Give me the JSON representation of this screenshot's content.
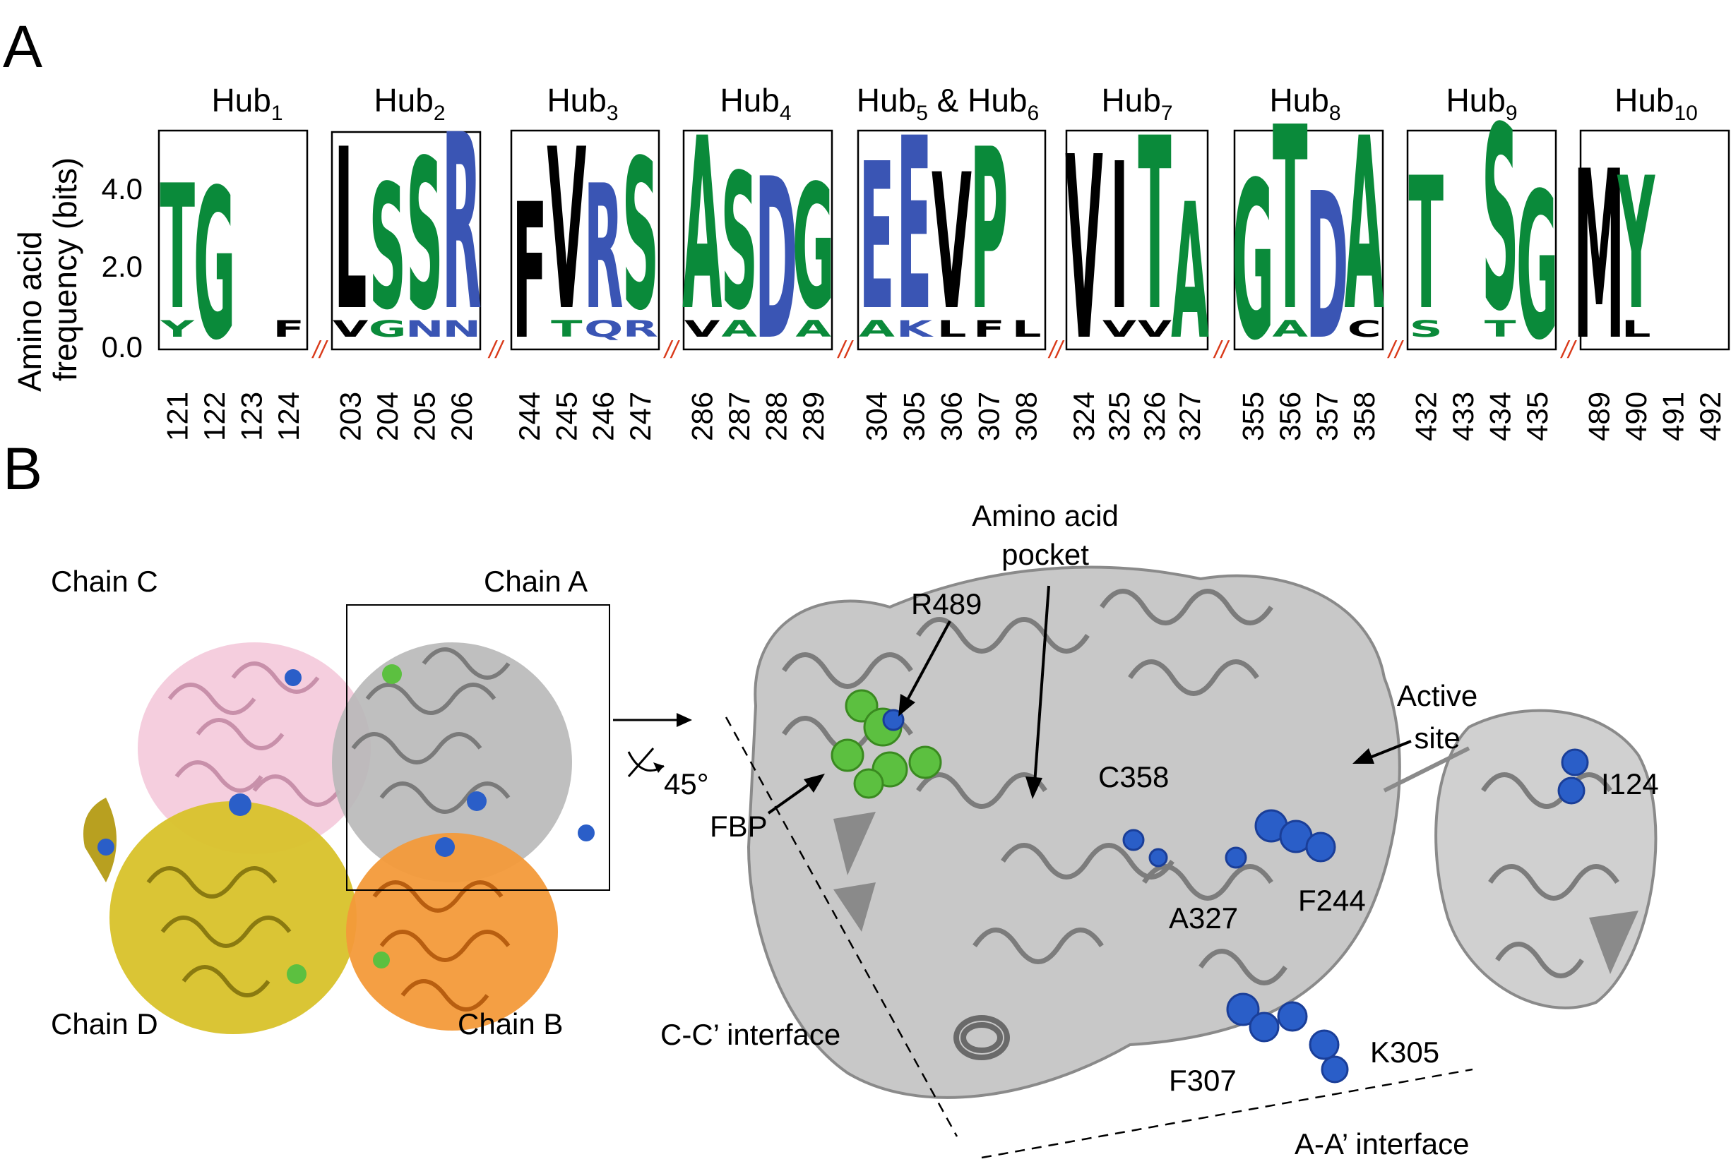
{
  "panel_a": {
    "letter": "A",
    "y_axis_label_line1": "Amino acid",
    "y_axis_label_line2": "frequency (bits)",
    "y_ticks": [
      "4.0",
      "2.0",
      "0.0"
    ],
    "hubs": [
      {
        "name": "Hub",
        "sub": "1",
        "positions": [
          "121",
          "122",
          "123",
          "124"
        ],
        "top_letters": [
          "T",
          "G",
          "",
          ""
        ],
        "second_letters": [
          "Y",
          "",
          "",
          "F"
        ]
      },
      {
        "name": "Hub",
        "sub": "2",
        "positions": [
          "203",
          "204",
          "205",
          "206"
        ],
        "top_letters": [
          "L",
          "S",
          "S",
          "R"
        ],
        "second_letters": [
          "V",
          "G",
          "N",
          "N"
        ]
      },
      {
        "name": "Hub",
        "sub": "3",
        "positions": [
          "244",
          "245",
          "246",
          "247"
        ],
        "top_letters": [
          "F",
          "V",
          "R",
          "S"
        ],
        "second_letters": [
          "",
          "T",
          "Q",
          "R"
        ]
      },
      {
        "name": "Hub",
        "sub": "4",
        "positions": [
          "286",
          "287",
          "288",
          "289"
        ],
        "top_letters": [
          "A",
          "S",
          "D",
          "G"
        ],
        "second_letters": [
          "V",
          "A",
          "",
          "A"
        ]
      },
      {
        "name": "Hub",
        "sub": "5",
        "sub2": "6",
        "joiner": " & ",
        "positions": [
          "304",
          "305",
          "306",
          "307",
          "308"
        ],
        "top_letters": [
          "E",
          "E",
          "V",
          "P",
          ""
        ],
        "second_letters": [
          "A",
          "K",
          "L",
          "F",
          "L"
        ]
      },
      {
        "name": "Hub",
        "sub": "7",
        "positions": [
          "324",
          "325",
          "326",
          "327"
        ],
        "top_letters": [
          "V",
          "I",
          "T",
          "A"
        ],
        "second_letters": [
          "",
          "V",
          "V",
          ""
        ]
      },
      {
        "name": "Hub",
        "sub": "8",
        "positions": [
          "355",
          "356",
          "357",
          "358"
        ],
        "top_letters": [
          "G",
          "T",
          "D",
          "A"
        ],
        "second_letters": [
          "",
          "A",
          "",
          "C"
        ]
      },
      {
        "name": "Hub",
        "sub": "9",
        "positions": [
          "432",
          "433",
          "434",
          "435"
        ],
        "top_letters": [
          "T",
          "",
          "S",
          "G"
        ],
        "second_letters": [
          "S",
          "",
          "T",
          ""
        ]
      },
      {
        "name": "Hub",
        "sub": "10",
        "positions": [
          "489",
          "490",
          "491",
          "492"
        ],
        "top_letters": [
          "M",
          "Y",
          "",
          ""
        ],
        "second_letters": [
          "",
          "L",
          "",
          ""
        ]
      }
    ],
    "break_mark": "//",
    "colors": {
      "hydrophobic": "#000000",
      "polar": "#0a8a3a",
      "charged": "#3a55b4",
      "break": "#d93a1a"
    }
  },
  "panel_b": {
    "letter": "B",
    "chains": {
      "c": "Chain C",
      "a": "Chain A",
      "d": "Chain D",
      "b": "Chain B"
    },
    "rotation_label": "45°",
    "annotations": {
      "pocket_line1": "Amino acid",
      "pocket_line2": "pocket",
      "r489": "R489",
      "active_line1": "Active",
      "active_line2": "site",
      "fbp": "FBP",
      "c358": "C358",
      "i124": "I124",
      "a327": "A327",
      "f244": "F244",
      "f307": "F307",
      "k305": "K305",
      "cc_interface": "C-C’ interface",
      "aa_interface": "A-A’ interface"
    },
    "colors": {
      "chain_a": "#a8a8a8",
      "chain_b": "#f08a2a",
      "chain_c": "#f0b8d0",
      "chain_d": "#d8c020",
      "residue": "#2a5ec8",
      "fbp": "#5cc040"
    }
  }
}
